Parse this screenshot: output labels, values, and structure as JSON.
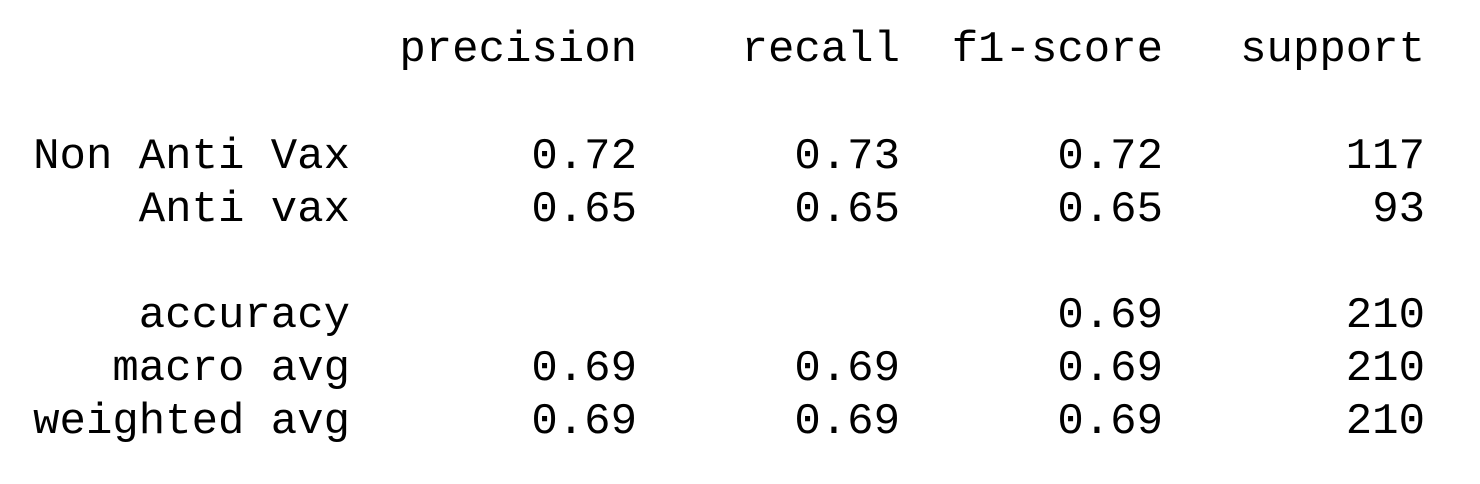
{
  "headers": {
    "precision": "precision",
    "recall": "recall",
    "f1_score": "f1-score",
    "support": "support"
  },
  "classes": [
    {
      "label": "Non Anti Vax",
      "precision": "0.72",
      "recall": "0.73",
      "f1_score": "0.72",
      "support": "117"
    },
    {
      "label": "Anti vax",
      "precision": "0.65",
      "recall": "0.65",
      "f1_score": "0.65",
      "support": "93"
    }
  ],
  "summary": [
    {
      "label": "accuracy",
      "precision": "",
      "recall": "",
      "f1_score": "0.69",
      "support": "210"
    },
    {
      "label": "macro avg",
      "precision": "0.69",
      "recall": "0.69",
      "f1_score": "0.69",
      "support": "210"
    },
    {
      "label": "weighted avg",
      "precision": "0.69",
      "recall": "0.69",
      "f1_score": "0.69",
      "support": "210"
    }
  ]
}
